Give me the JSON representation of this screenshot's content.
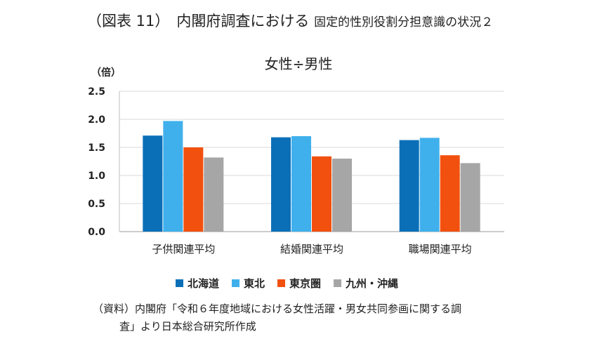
{
  "figure": {
    "label": "（図表 11）",
    "title": "内閣府調査における",
    "subtitle": "固定的性別役割分担意識の状況２"
  },
  "source": {
    "line1": "（資料）内閣府「令和６年度地域における女性活躍・男女共同参画に関する調",
    "line2": "査」より日本総合研究所作成"
  },
  "chart_data": {
    "type": "bar",
    "title": "女性÷男性",
    "ylabel": "（倍）",
    "xlabel": "",
    "ylim": [
      0,
      2.5
    ],
    "yticks": [
      "0.0",
      "0.5",
      "1.0",
      "1.5",
      "2.0",
      "2.5"
    ],
    "grid": true,
    "legend_position": "bottom",
    "categories": [
      "子供関連平均",
      "結婚関連平均",
      "職場関連平均"
    ],
    "series": [
      {
        "name": "北海道",
        "color": "#0b6fb8",
        "values": [
          1.71,
          1.68,
          1.63
        ]
      },
      {
        "name": "東北",
        "color": "#3fb0ec",
        "values": [
          1.97,
          1.7,
          1.67
        ]
      },
      {
        "name": "東京圏",
        "color": "#f2500f",
        "values": [
          1.5,
          1.34,
          1.36
        ]
      },
      {
        "name": "九州・沖縄",
        "color": "#a6a6a6",
        "values": [
          1.32,
          1.3,
          1.22
        ]
      }
    ]
  }
}
